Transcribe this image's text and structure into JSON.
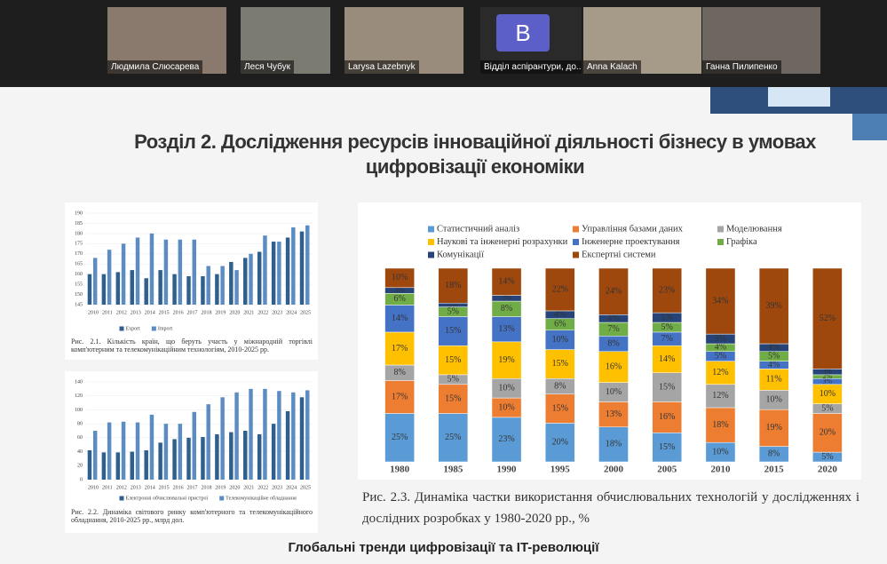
{
  "participants": [
    {
      "name": "Людмила Слюсарева"
    },
    {
      "name": "Леся Чубук"
    },
    {
      "name": "Larysa Lazebnyk"
    },
    {
      "name": "Відділ аспірантури, до...",
      "avatar": "B"
    },
    {
      "name": "Anna Kalach"
    },
    {
      "name": "Ганна Пилипенко"
    }
  ],
  "slide": {
    "title": "Розділ 2. Дослідження ресурсів інноваційної діяльності бізнесу в умовах цифровізації економіки",
    "footer": "Глобальні тренди цифровізації та IT-революції"
  },
  "chart_data": [
    {
      "type": "bar",
      "caption": "Рис. 2.1. Кількість країн, що беруть участь у міжнародній торгівлі комп'ютерним та телекомунікаційним технологіям, 2010-2025 рр.",
      "categories": [
        "2010",
        "2011",
        "2012",
        "2013",
        "2014",
        "2015",
        "2016",
        "2017",
        "2018",
        "2019",
        "2020",
        "2021",
        "2022",
        "2023",
        "2024",
        "2025"
      ],
      "series": [
        {
          "name": "Export",
          "color": "#2f5f8f",
          "values": [
            160,
            160,
            161,
            162,
            158,
            162,
            160,
            159,
            159,
            160,
            166,
            168,
            171,
            176,
            178,
            181
          ]
        },
        {
          "name": "Import",
          "color": "#5b8cc4",
          "values": [
            168,
            172,
            175,
            178,
            180,
            177,
            177,
            177,
            164,
            164,
            162,
            170,
            179,
            176,
            183,
            184
          ]
        }
      ],
      "ylim": [
        145,
        190
      ],
      "yticks": [
        145,
        150,
        155,
        160,
        165,
        170,
        175,
        180,
        185,
        190
      ],
      "grid": true
    },
    {
      "type": "bar",
      "caption": "Рис. 2.2. Динаміка світового ринку комп'ютерного та телекомунікаційного обладнання, 2010-2025 рр., млрд дол.",
      "categories": [
        "2010",
        "2011",
        "2012",
        "2013",
        "2014",
        "2015",
        "2016",
        "2017",
        "2018",
        "2019",
        "2020",
        "2021",
        "2022",
        "2023",
        "2024",
        "2025"
      ],
      "series": [
        {
          "name": "Електронні обчислювальні пристрої",
          "color": "#2f5f8f",
          "values": [
            42,
            39,
            39,
            40,
            42,
            53,
            58,
            60,
            61,
            65,
            68,
            70,
            65,
            80,
            98,
            118
          ]
        },
        {
          "name": "Телекомунікаційне обладнання",
          "color": "#5b8cc4",
          "values": [
            70,
            82,
            83,
            82,
            93,
            80,
            80,
            97,
            108,
            118,
            125,
            130,
            130,
            127,
            125,
            128
          ]
        }
      ],
      "ylim": [
        0,
        140
      ],
      "yticks": [
        0,
        20,
        40,
        60,
        80,
        100,
        120,
        140
      ],
      "grid": true
    },
    {
      "type": "stacked_bar",
      "caption": "Рис. 2.3. Динаміка частки використання обчислювальних технологій у дослідженнях і дослідних розробках у 1980-2020 рр., %",
      "categories": [
        "1980",
        "1985",
        "1990",
        "1995",
        "2000",
        "2005",
        "2010",
        "2015",
        "2020"
      ],
      "series": [
        {
          "name": "Статистичний аналіз",
          "color": "#5b9bd5",
          "values": [
            25,
            25,
            23,
            20,
            18,
            15,
            10,
            8,
            5
          ],
          "value_labels": [
            "25%",
            "25%",
            "23%",
            "20%",
            "18%",
            "15%",
            "10%",
            "8%",
            "5%"
          ]
        },
        {
          "name": "Управління базами даних",
          "color": "#ed7d31",
          "values": [
            17,
            15,
            10,
            15,
            13,
            16,
            18,
            19,
            20
          ],
          "value_labels": [
            "17%",
            "15%",
            "10%",
            "15%",
            "13%",
            "16%",
            "18%",
            "19%",
            "20%"
          ]
        },
        {
          "name": "Моделювання",
          "color": "#a5a5a5",
          "values": [
            8,
            5,
            10,
            8,
            10,
            15,
            12,
            10,
            5
          ],
          "value_labels": [
            "8%",
            "5%",
            "10%",
            "8%",
            "10%",
            "15%",
            "12%",
            "10%",
            "5%"
          ]
        },
        {
          "name": "Наукові та інженерні розрахунки",
          "color": "#ffc000",
          "values": [
            17,
            15,
            19,
            15,
            16,
            14,
            12,
            11,
            10
          ],
          "value_labels": [
            "17%",
            "15%",
            "19%",
            "15%",
            "16%",
            "14%",
            "12%",
            "11%",
            "10%"
          ]
        },
        {
          "name": "Інженерне проектування",
          "color": "#4472c4",
          "values": [
            14,
            15,
            13,
            10,
            8,
            7,
            5,
            4,
            3
          ],
          "value_labels": [
            "14%",
            "15%",
            "13%",
            "10%",
            "8%",
            "7%",
            "5%",
            "4%",
            "3%"
          ]
        },
        {
          "name": "Графіка",
          "color": "#70ad47",
          "values": [
            6,
            5,
            8,
            6,
            7,
            5,
            4,
            5,
            2
          ],
          "value_labels": [
            "6%",
            "5%",
            "8%",
            "6%",
            "7%",
            "5%",
            "4%",
            "5%",
            "2%"
          ]
        },
        {
          "name": "Комунікації",
          "color": "#264478",
          "values": [
            3,
            2,
            3,
            4,
            4,
            5,
            5,
            4,
            3
          ],
          "value_labels": [
            "3%",
            "2%",
            "3%",
            "4%",
            "4%",
            "5%",
            "5%",
            "4%",
            "3%"
          ]
        },
        {
          "name": "Експертні системи",
          "color": "#9e480e",
          "values": [
            10,
            18,
            14,
            22,
            24,
            23,
            34,
            39,
            52
          ],
          "value_labels": [
            "10%",
            "18%",
            "14%",
            "22%",
            "24%",
            "23%",
            "34%",
            "39%",
            "52%"
          ]
        }
      ]
    }
  ]
}
